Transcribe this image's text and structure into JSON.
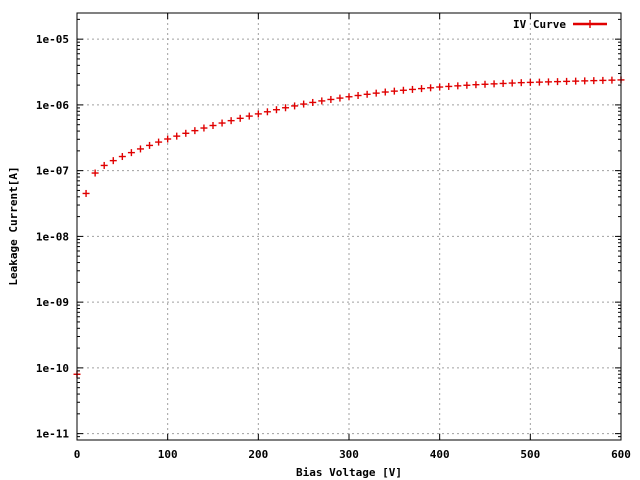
{
  "chart_data": {
    "type": "scatter",
    "title": "",
    "xlabel": "Bias Voltage [V]",
    "ylabel": "Leakage Current[A]",
    "xlim": [
      0,
      600
    ],
    "ylim": [
      8e-12,
      2.5e-05
    ],
    "yscale": "log",
    "grid": true,
    "legend_position": "top-right",
    "x_ticks": [
      0,
      100,
      200,
      300,
      400,
      500,
      600
    ],
    "x_tick_labels": [
      "0",
      "100",
      "200",
      "300",
      "400",
      "500",
      "600"
    ],
    "y_ticks": [
      1e-11,
      1e-10,
      1e-09,
      1e-08,
      1e-07,
      1e-06,
      1e-05
    ],
    "y_tick_labels": [
      "1e-11",
      "1e-10",
      "1e-09",
      "1e-08",
      "1e-07",
      "1e-06",
      "1e-05"
    ],
    "series": [
      {
        "name": "IV Curve",
        "color": "#e00000",
        "marker": "plus",
        "x": [
          0,
          10,
          20,
          30,
          40,
          50,
          60,
          70,
          80,
          90,
          100,
          110,
          120,
          130,
          140,
          150,
          160,
          170,
          180,
          190,
          200,
          210,
          220,
          230,
          240,
          250,
          260,
          270,
          280,
          290,
          300,
          310,
          320,
          330,
          340,
          350,
          360,
          370,
          380,
          390,
          400,
          410,
          420,
          430,
          440,
          450,
          460,
          470,
          480,
          490,
          500,
          510,
          520,
          530,
          540,
          550,
          560,
          570,
          580,
          590,
          600
        ],
        "y": [
          8e-11,
          4.5e-08,
          9.2e-08,
          1.2e-07,
          1.42e-07,
          1.64e-07,
          1.88e-07,
          2.14e-07,
          2.42e-07,
          2.72e-07,
          3.03e-07,
          3.35e-07,
          3.7e-07,
          4.06e-07,
          4.45e-07,
          4.86e-07,
          5.3e-07,
          5.76e-07,
          6.25e-07,
          6.76e-07,
          7.3e-07,
          7.86e-07,
          8.45e-07,
          9.05e-07,
          9.65e-07,
          1.03e-06,
          1.09e-06,
          1.15e-06,
          1.21e-06,
          1.27e-06,
          1.33e-06,
          1.39e-06,
          1.45e-06,
          1.51e-06,
          1.57e-06,
          1.62e-06,
          1.67e-06,
          1.72e-06,
          1.77e-06,
          1.82e-06,
          1.87e-06,
          1.91e-06,
          1.95e-06,
          1.99e-06,
          2.03e-06,
          2.06e-06,
          2.09e-06,
          2.12e-06,
          2.15e-06,
          2.18e-06,
          2.2e-06,
          2.22e-06,
          2.24e-06,
          2.26e-06,
          2.28e-06,
          2.3e-06,
          2.32e-06,
          2.34e-06,
          2.36e-06,
          2.38e-06,
          2.4e-06
        ]
      }
    ]
  }
}
